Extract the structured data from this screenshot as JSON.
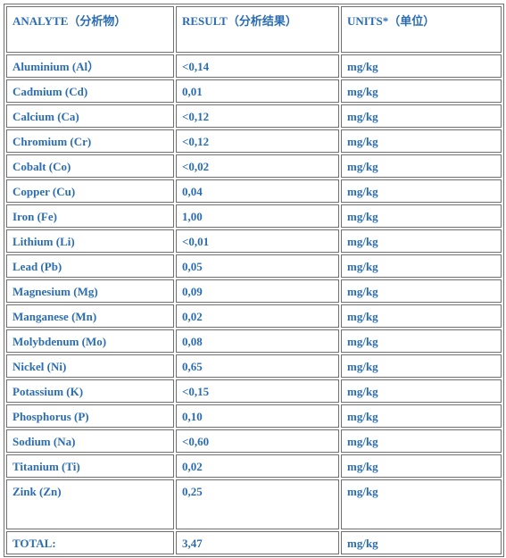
{
  "headers": [
    "ANALYTE（分析物）",
    "RESULT（分析结果）",
    "UNITS*（单位）"
  ],
  "rows": [
    [
      "Aluminium (Al）",
      "<0,14",
      "mg/kg"
    ],
    [
      "Cadmium (Cd)",
      "0,01",
      "mg/kg"
    ],
    [
      "Calcium (Ca)",
      "<0,12",
      "mg/kg"
    ],
    [
      "Chromium (Cr)",
      "<0,12",
      "mg/kg"
    ],
    [
      "Cobalt (Co)",
      "<0,02",
      "mg/kg"
    ],
    [
      "Copper (Cu)",
      "0,04",
      "mg/kg"
    ],
    [
      "Iron (Fe)",
      "1,00",
      "mg/kg"
    ],
    [
      "Lithium (Li)",
      "<0,01",
      "mg/kg"
    ],
    [
      "Lead (Pb)",
      "0,05",
      "mg/kg"
    ],
    [
      "Magnesium (Mg)",
      "0,09",
      "mg/kg"
    ],
    [
      "Manganese (Mn)",
      "0,02",
      "mg/kg"
    ],
    [
      "Molybdenum (Mo)",
      "0,08",
      "mg/kg"
    ],
    [
      "Nickel (Ni)",
      "0,65",
      "mg/kg"
    ],
    [
      "Potassium (K)",
      "<0,15",
      "mg/kg"
    ],
    [
      "Phosphorus (P)",
      "0,10",
      "mg/kg"
    ],
    [
      "Sodium (Na)",
      "<0,60",
      "mg/kg"
    ],
    [
      "Titanium (Ti)",
      "0,02",
      "mg/kg"
    ],
    [
      "Zink (Zn)",
      "0,25",
      "mg/kg"
    ]
  ],
  "total": [
    "TOTAL:",
    "3,47",
    "mg/kg"
  ]
}
